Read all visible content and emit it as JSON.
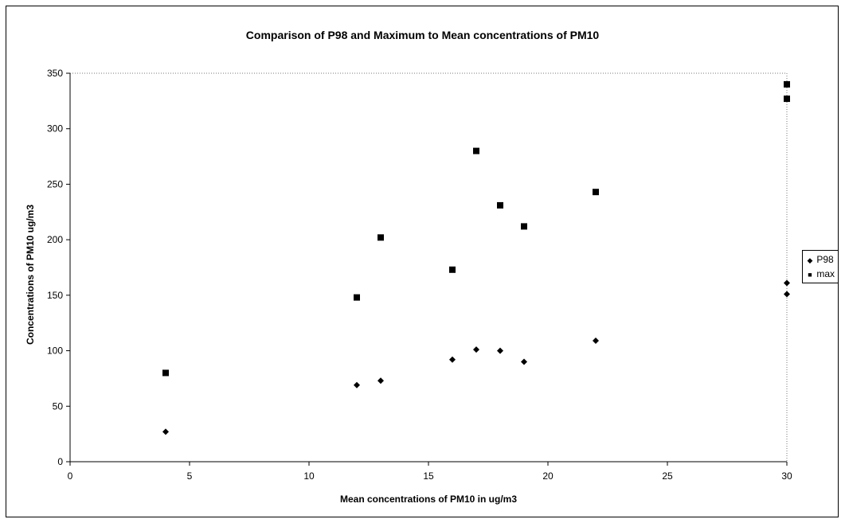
{
  "chart_data": {
    "type": "scatter",
    "title": "Comparison of P98 and Maximum to Mean concentrations of PM10",
    "xlabel": "Mean concentrations of PM10 in ug/m3",
    "ylabel": "Concentrations of PM10 ug/m3",
    "xlim": [
      0,
      30
    ],
    "ylim": [
      0,
      350
    ],
    "xticks": [
      "0",
      "5",
      "10",
      "15",
      "20",
      "25",
      "30"
    ],
    "yticks": [
      "0",
      "50",
      "100",
      "150",
      "200",
      "250",
      "300",
      "350"
    ],
    "grid": false,
    "legend_position": "right",
    "series": [
      {
        "name": "P98",
        "marker": "diamond",
        "color": "#000000",
        "points": [
          [
            4,
            27
          ],
          [
            12,
            69
          ],
          [
            13,
            73
          ],
          [
            16,
            92
          ],
          [
            17,
            101
          ],
          [
            18,
            100
          ],
          [
            19,
            90
          ],
          [
            22,
            109
          ],
          [
            30,
            161
          ],
          [
            30,
            151
          ]
        ]
      },
      {
        "name": "max",
        "marker": "square",
        "color": "#000000",
        "points": [
          [
            4,
            80
          ],
          [
            12,
            148
          ],
          [
            13,
            202
          ],
          [
            16,
            173
          ],
          [
            17,
            280
          ],
          [
            18,
            231
          ],
          [
            19,
            212
          ],
          [
            22,
            243
          ],
          [
            30,
            340
          ],
          [
            30,
            327
          ]
        ]
      }
    ]
  }
}
